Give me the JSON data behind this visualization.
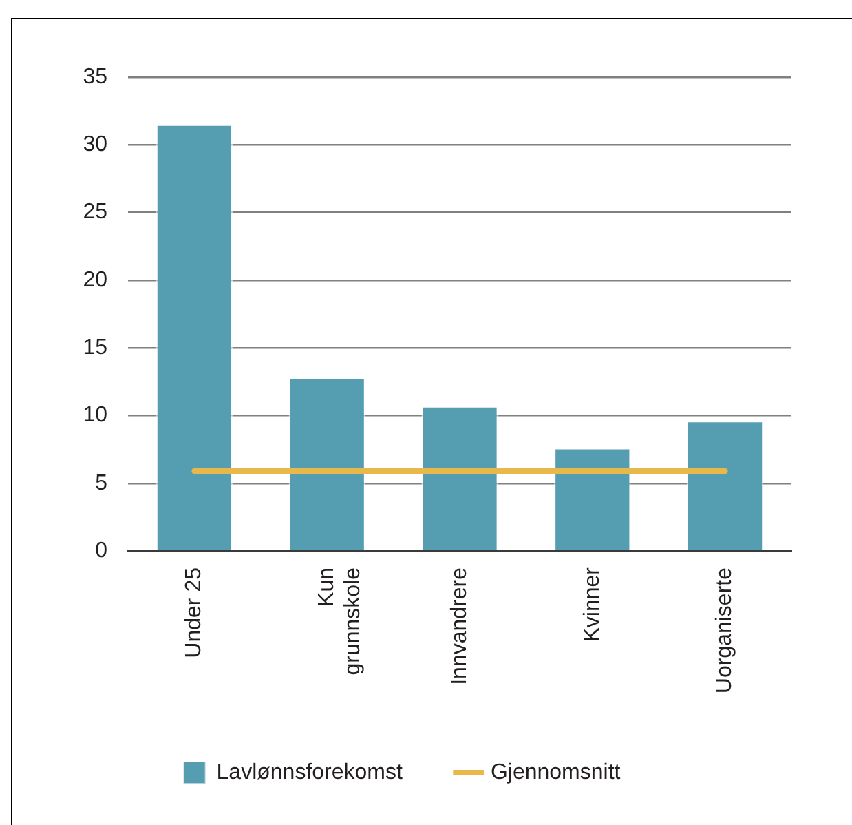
{
  "chart_data": {
    "type": "bar",
    "categories": [
      "Under 25",
      "Kun grunnskole",
      "Innvandrere",
      "Kvinner",
      "Uorganiserte"
    ],
    "series": [
      {
        "name": "Lavlønnsforekomst",
        "color": "#559db0",
        "values": [
          31.5,
          12.8,
          10.7,
          7.6,
          9.6
        ]
      },
      {
        "name": "Gjennomsnitt",
        "type": "line",
        "color": "#e8b84b",
        "values": [
          5.9,
          5.9,
          5.9,
          5.9,
          5.9
        ]
      }
    ],
    "ylim": [
      0,
      35
    ],
    "yticks": [
      0,
      5,
      10,
      15,
      20,
      25,
      30,
      35
    ],
    "grid": "y",
    "legend": "bottom",
    "marker": "none"
  }
}
